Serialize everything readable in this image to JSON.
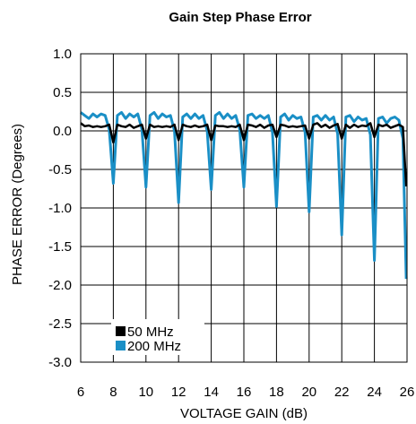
{
  "chart_data": {
    "type": "line",
    "title": "Gain Step Phase Error",
    "xlabel": "VOLTAGE GAIN (dB)",
    "ylabel": "PHASE ERROR (Degrees)",
    "xlim": [
      6,
      26
    ],
    "ylim": [
      -3.0,
      1.0
    ],
    "x_ticks": [
      6,
      8,
      10,
      12,
      14,
      16,
      18,
      20,
      22,
      24,
      26
    ],
    "x_tick_labels": [
      "6",
      "8",
      "10",
      "12",
      "14",
      "16",
      "18",
      "20",
      "22",
      "24",
      "26"
    ],
    "y_ticks": [
      1.0,
      0.5,
      0.0,
      -0.5,
      -1.0,
      -1.5,
      -2.0,
      -2.5,
      -3.0
    ],
    "y_tick_labels": [
      "1.0",
      "0.5",
      "0.0",
      "-0.5",
      "-1.0",
      "-1.5",
      "-2.0",
      "-2.5",
      "-3.0"
    ],
    "grid": true,
    "legend_position": "bottom-left",
    "series": [
      {
        "name": "50 MHz",
        "color": "#000000",
        "x": [
          6.0,
          6.25,
          6.5,
          6.75,
          7.0,
          7.25,
          7.5,
          7.75,
          8.0,
          8.25,
          8.5,
          8.75,
          9.0,
          9.25,
          9.5,
          9.75,
          10.0,
          10.25,
          10.5,
          10.75,
          11.0,
          11.25,
          11.5,
          11.75,
          12.0,
          12.25,
          12.5,
          12.75,
          13.0,
          13.25,
          13.5,
          13.75,
          14.0,
          14.25,
          14.5,
          14.75,
          15.0,
          15.25,
          15.5,
          15.75,
          16.0,
          16.25,
          16.5,
          16.75,
          17.0,
          17.25,
          17.5,
          17.75,
          18.0,
          18.25,
          18.5,
          18.75,
          19.0,
          19.25,
          19.5,
          19.75,
          20.0,
          20.25,
          20.5,
          20.75,
          21.0,
          21.25,
          21.5,
          21.75,
          22.0,
          22.25,
          22.5,
          22.75,
          23.0,
          23.25,
          23.5,
          23.75,
          24.0,
          24.25,
          24.5,
          24.75,
          25.0,
          25.25,
          25.5,
          25.75,
          25.95
        ],
        "y": [
          0.1,
          0.06,
          0.07,
          0.05,
          0.06,
          0.05,
          0.06,
          0.08,
          -0.15,
          0.08,
          0.06,
          0.05,
          0.08,
          0.04,
          0.06,
          0.08,
          -0.1,
          0.08,
          0.05,
          0.06,
          0.05,
          0.06,
          0.05,
          0.08,
          -0.12,
          0.08,
          0.06,
          0.05,
          0.07,
          0.05,
          0.06,
          0.08,
          -0.12,
          0.07,
          0.06,
          0.06,
          0.05,
          0.06,
          0.05,
          0.08,
          -0.12,
          0.08,
          0.07,
          0.05,
          0.08,
          0.04,
          0.07,
          0.08,
          -0.08,
          0.08,
          0.07,
          0.05,
          0.06,
          0.05,
          0.06,
          0.07,
          -0.1,
          0.08,
          0.1,
          0.05,
          0.08,
          0.04,
          0.07,
          0.09,
          -0.1,
          0.08,
          0.04,
          0.08,
          0.05,
          0.07,
          0.06,
          0.1,
          -0.08,
          0.08,
          0.06,
          0.08,
          0.04,
          0.06,
          0.08,
          0.05,
          -0.72
        ]
      },
      {
        "name": "200 MHz",
        "color": "#1a8fc6",
        "x": [
          6.0,
          6.25,
          6.5,
          6.75,
          7.0,
          7.25,
          7.5,
          7.75,
          8.0,
          8.25,
          8.5,
          8.75,
          9.0,
          9.25,
          9.5,
          9.75,
          10.0,
          10.25,
          10.5,
          10.75,
          11.0,
          11.25,
          11.5,
          11.75,
          12.0,
          12.25,
          12.5,
          12.75,
          13.0,
          13.25,
          13.5,
          13.75,
          14.0,
          14.25,
          14.5,
          14.75,
          15.0,
          15.25,
          15.5,
          15.75,
          16.0,
          16.25,
          16.5,
          16.75,
          17.0,
          17.25,
          17.5,
          17.75,
          18.0,
          18.25,
          18.5,
          18.75,
          19.0,
          19.25,
          19.5,
          19.75,
          20.0,
          20.25,
          20.5,
          20.75,
          21.0,
          21.25,
          21.5,
          21.75,
          22.0,
          22.25,
          22.5,
          22.75,
          23.0,
          23.25,
          23.5,
          23.75,
          24.0,
          24.25,
          24.5,
          24.75,
          25.0,
          25.25,
          25.5,
          25.75,
          25.95
        ],
        "y": [
          0.24,
          0.2,
          0.16,
          0.22,
          0.18,
          0.22,
          0.2,
          0.02,
          -0.68,
          0.2,
          0.24,
          0.16,
          0.22,
          0.18,
          0.22,
          0.02,
          -0.73,
          0.2,
          0.24,
          0.16,
          0.22,
          0.18,
          0.2,
          0.0,
          -0.93,
          0.18,
          0.22,
          0.16,
          0.22,
          0.16,
          0.2,
          0.0,
          -0.76,
          0.2,
          0.24,
          0.16,
          0.22,
          0.16,
          0.2,
          0.02,
          -0.73,
          0.2,
          0.22,
          0.16,
          0.2,
          0.16,
          0.2,
          -0.02,
          -0.98,
          0.18,
          0.22,
          0.14,
          0.2,
          0.16,
          0.18,
          -0.02,
          -1.05,
          0.18,
          0.2,
          0.14,
          0.2,
          0.14,
          0.18,
          -0.04,
          -1.35,
          0.18,
          0.2,
          0.12,
          0.18,
          0.14,
          0.16,
          -0.05,
          -1.68,
          0.16,
          0.18,
          0.1,
          0.16,
          0.18,
          0.14,
          -0.1,
          -1.92
        ]
      }
    ]
  }
}
